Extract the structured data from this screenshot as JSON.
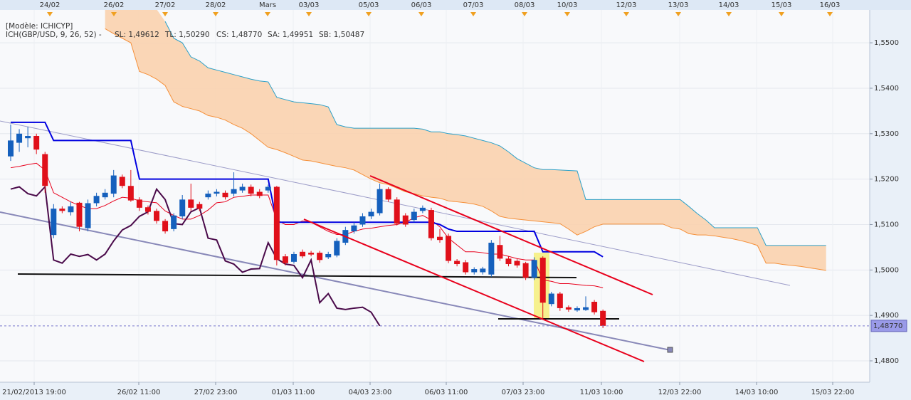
{
  "chart_data": {
    "type": "candlestick",
    "model_label": "[Modèle: ICHICYP]",
    "indicator_label": "ICH(GBP/USD, 9, 26, 52) -",
    "top_labels": [
      "24/02",
      "26/02",
      "27/02",
      "28/02",
      "Mars",
      "03/03",
      "05/03",
      "06/03",
      "07/03",
      "08/03",
      "10/03",
      "12/03",
      "13/03",
      "14/03",
      "15/03",
      "16/03"
    ],
    "bottom_labels": [
      "21/02/2013 19:00",
      "26/02 11:00",
      "27/02 23:00",
      "01/03 11:00",
      "04/03 23:00",
      "06/03 11:00",
      "07/03 23:00",
      "11/03 10:00",
      "12/03 22:00",
      "14/03 10:00",
      "15/03 22:00"
    ],
    "ylim": [
      1.4753,
      1.5566
    ],
    "yticks": [
      {
        "value": 1.48,
        "label": "1,4800"
      },
      {
        "value": 1.49,
        "label": "1,4900"
      },
      {
        "value": 1.5,
        "label": "1,5000"
      },
      {
        "value": 1.51,
        "label": "1,5100"
      },
      {
        "value": 1.52,
        "label": "1,5200"
      },
      {
        "value": 1.53,
        "label": "1,5300"
      },
      {
        "value": 1.54,
        "label": "1,5400"
      },
      {
        "value": 1.55,
        "label": "1,5500"
      }
    ],
    "grid": true,
    "up_color": "#1560bd",
    "down_color": "#e0101a",
    "last_price": {
      "value": 1.4877,
      "label": "1,48770"
    },
    "open": [
      1.525,
      1.528,
      1.529,
      1.5295,
      1.5255,
      1.5077,
      1.5135,
      1.5127,
      1.5148,
      1.5092,
      1.5147,
      1.516,
      1.5168,
      1.5205,
      1.5185,
      1.5155,
      1.5138,
      1.513,
      1.5108,
      1.509,
      1.5118,
      1.5155,
      1.5145,
      1.516,
      1.5168,
      1.517,
      1.5168,
      1.5175,
      1.5183,
      1.5172,
      1.5175,
      1.5183,
      1.503,
      1.5018,
      1.504,
      1.5038,
      1.5038,
      1.5028,
      1.5032,
      1.506,
      1.5085,
      1.51,
      1.5118,
      1.5125,
      1.5178,
      1.5155,
      1.512,
      1.511,
      1.513,
      1.5132,
      1.5073,
      1.5075,
      1.502,
      1.5017,
      1.4995,
      1.4995,
      1.499,
      1.5055,
      1.5025,
      1.502,
      1.5015,
      1.4983,
      1.5027,
      1.4925,
      1.4948,
      1.4918,
      1.4911,
      1.4912,
      1.493,
      1.491,
      null,
      null,
      null,
      null,
      null,
      null,
      null,
      null,
      null,
      null,
      null,
      null,
      null,
      null,
      null,
      null,
      null,
      null,
      null,
      null,
      null,
      null,
      null,
      null,
      null,
      null
    ],
    "high": [
      1.532,
      1.531,
      1.5315,
      1.53,
      1.526,
      1.5145,
      1.514,
      1.515,
      1.515,
      1.5155,
      1.517,
      1.5178,
      1.522,
      1.521,
      1.522,
      1.516,
      1.5142,
      1.5135,
      1.5112,
      1.5125,
      1.5165,
      1.519,
      1.515,
      1.5175,
      1.5178,
      1.5175,
      1.5215,
      1.519,
      1.5188,
      1.5178,
      1.5188,
      1.5185,
      1.5035,
      1.504,
      1.5045,
      1.5042,
      1.5042,
      1.504,
      1.507,
      1.5095,
      1.5105,
      1.5125,
      1.5135,
      1.519,
      1.5182,
      1.516,
      1.5125,
      1.5135,
      1.5142,
      1.5137,
      1.509,
      1.508,
      1.5024,
      1.5022,
      1.5006,
      1.5007,
      1.5066,
      1.5075,
      1.503,
      1.5024,
      1.5018,
      1.5028,
      1.503,
      1.4952,
      1.4952,
      1.4922,
      1.492,
      1.4942,
      1.4934,
      1.4913,
      null,
      null,
      null,
      null,
      null,
      null,
      null,
      null,
      null,
      null,
      null,
      null,
      null,
      null,
      null,
      null,
      null,
      null,
      null,
      null,
      null,
      null,
      null,
      null,
      null,
      null
    ],
    "low": [
      1.524,
      1.526,
      1.527,
      1.5255,
      1.517,
      1.507,
      1.5125,
      1.512,
      1.5085,
      1.5085,
      1.514,
      1.5155,
      1.516,
      1.518,
      1.515,
      1.513,
      1.5122,
      1.5102,
      1.508,
      1.5085,
      1.5112,
      1.513,
      1.513,
      1.5155,
      1.5162,
      1.5155,
      1.5162,
      1.517,
      1.5162,
      1.5158,
      1.517,
      1.501,
      1.501,
      1.5014,
      1.5026,
      1.503,
      1.5016,
      1.5024,
      1.5028,
      1.5055,
      1.508,
      1.5095,
      1.5112,
      1.512,
      1.515,
      1.5098,
      1.5095,
      1.5105,
      1.5125,
      1.5065,
      1.506,
      1.5015,
      1.5008,
      1.499,
      1.499,
      1.499,
      1.4985,
      1.502,
      1.5008,
      1.5005,
      1.4978,
      1.4978,
      1.489,
      1.492,
      1.491,
      1.4908,
      1.4908,
      1.491,
      1.4902,
      1.4872,
      null,
      null,
      null,
      null,
      null,
      null,
      null,
      null,
      null,
      null,
      null,
      null,
      null,
      null,
      null,
      null,
      null,
      null,
      null,
      null,
      null,
      null,
      null,
      null,
      null,
      null
    ],
    "close": [
      1.5285,
      1.53,
      1.5295,
      1.5265,
      1.5185,
      1.5135,
      1.513,
      1.514,
      1.5095,
      1.5147,
      1.5163,
      1.517,
      1.5208,
      1.5185,
      1.5153,
      1.5137,
      1.5128,
      1.5108,
      1.5085,
      1.512,
      1.5155,
      1.5137,
      1.5135,
      1.5168,
      1.5172,
      1.516,
      1.5178,
      1.5183,
      1.5168,
      1.5163,
      1.5183,
      1.5022,
      1.5015,
      1.5035,
      1.503,
      1.5034,
      1.5022,
      1.5035,
      1.5064,
      1.5088,
      1.5098,
      1.5118,
      1.5128,
      1.5178,
      1.5155,
      1.5102,
      1.51,
      1.5128,
      1.5137,
      1.507,
      1.5066,
      1.502,
      1.5013,
      1.4995,
      1.5002,
      1.5003,
      1.506,
      1.5025,
      1.5013,
      1.501,
      1.4983,
      1.5022,
      1.4928,
      1.4948,
      1.4916,
      1.4913,
      1.4916,
      1.4918,
      1.4907,
      1.4877,
      null,
      null,
      null,
      null,
      null,
      null,
      null,
      null,
      null,
      null,
      null,
      null,
      null,
      null,
      null,
      null,
      null,
      null,
      null,
      null,
      null,
      null,
      null,
      null,
      null,
      null
    ],
    "series": [
      {
        "name": "SL: 1,49612",
        "color": "#e8001c",
        "width": 1,
        "values": [
          1.5225,
          1.5228,
          1.5232,
          1.5235,
          1.522,
          1.517,
          1.516,
          1.515,
          1.5142,
          1.5135,
          1.5135,
          1.5142,
          1.5152,
          1.516,
          1.5158,
          1.5152,
          1.515,
          1.5148,
          1.513,
          1.512,
          1.5112,
          1.5112,
          1.512,
          1.5132,
          1.5148,
          1.515,
          1.516,
          1.5162,
          1.5165,
          1.5165,
          1.5165,
          1.511,
          1.51,
          1.51,
          1.5108,
          1.5105,
          1.5095,
          1.5085,
          1.5078,
          1.5078,
          1.5085,
          1.509,
          1.5092,
          1.5095,
          1.5098,
          1.51,
          1.5105,
          1.5115,
          1.512,
          1.511,
          1.5095,
          1.507,
          1.5055,
          1.504,
          1.504,
          1.5038,
          1.5035,
          1.5035,
          1.503,
          1.5025,
          1.5022,
          1.5022,
          1.4978,
          1.4975,
          1.497,
          1.497,
          1.4968,
          1.4966,
          1.4965,
          1.4961,
          null,
          null,
          null,
          null,
          null,
          null,
          null,
          null,
          null,
          null,
          null,
          null,
          null,
          null,
          null,
          null,
          null,
          null,
          null,
          null,
          null,
          null,
          null,
          null,
          null,
          null
        ]
      },
      {
        "name": "TL: 1,50290",
        "color": "#0000e0",
        "width": 2,
        "values": [
          1.5325,
          1.5325,
          1.5325,
          1.5325,
          1.5325,
          1.5285,
          1.5285,
          1.5285,
          1.5285,
          1.5285,
          1.5285,
          1.5285,
          1.5285,
          1.5285,
          1.5285,
          1.52,
          1.52,
          1.52,
          1.52,
          1.52,
          1.52,
          1.52,
          1.52,
          1.52,
          1.52,
          1.52,
          1.52,
          1.52,
          1.52,
          1.52,
          1.52,
          1.5105,
          1.5105,
          1.5105,
          1.5105,
          1.5105,
          1.5105,
          1.5105,
          1.5105,
          1.5105,
          1.5105,
          1.5105,
          1.5105,
          1.5105,
          1.5105,
          1.5105,
          1.5105,
          1.5105,
          1.5105,
          1.5105,
          1.51,
          1.509,
          1.5085,
          1.5085,
          1.5085,
          1.5085,
          1.5085,
          1.5085,
          1.5085,
          1.5085,
          1.5085,
          1.5085,
          1.504,
          1.504,
          1.504,
          1.504,
          1.504,
          1.504,
          1.504,
          1.5029,
          null,
          null,
          null,
          null,
          null,
          null,
          null,
          null,
          null,
          null,
          null,
          null,
          null,
          null,
          null,
          null,
          null,
          null,
          null,
          null,
          null,
          null,
          null,
          null,
          null,
          null
        ]
      },
      {
        "name": "CS: 1,48770",
        "color": "#4a0a4a",
        "width": 2,
        "values": [
          1.5178,
          1.5183,
          1.5168,
          1.5163,
          1.5183,
          1.5022,
          1.5015,
          1.5035,
          1.503,
          1.5034,
          1.5022,
          1.5035,
          1.5064,
          1.5088,
          1.5098,
          1.5118,
          1.5128,
          1.5178,
          1.5155,
          1.5102,
          1.51,
          1.5128,
          1.5137,
          1.507,
          1.5066,
          1.502,
          1.5013,
          1.4995,
          1.5002,
          1.5003,
          1.506,
          1.5025,
          1.5013,
          1.501,
          1.4983,
          1.5022,
          1.4928,
          1.4948,
          1.4916,
          1.4913,
          1.4916,
          1.4918,
          1.4907,
          1.4877,
          null,
          null,
          null,
          null,
          null,
          null,
          null,
          null,
          null,
          null,
          null,
          null,
          null,
          null,
          null,
          null,
          null,
          null,
          null,
          null,
          null,
          null,
          null,
          null,
          null,
          null,
          null,
          null,
          null,
          null,
          null,
          null,
          null,
          null,
          null,
          null,
          null,
          null,
          null,
          null,
          null,
          null,
          null,
          null,
          null,
          null,
          null,
          null,
          null,
          null,
          null,
          null
        ]
      },
      {
        "name": "SA: 1,49951",
        "color": "#f5903a",
        "width": 1,
        "values": [
          null,
          null,
          null,
          null,
          null,
          null,
          null,
          null,
          null,
          null,
          null,
          1.5531,
          1.552,
          1.551,
          1.55,
          1.5437,
          1.543,
          1.542,
          1.5406,
          1.537,
          1.536,
          1.5355,
          1.535,
          1.534,
          1.5336,
          1.533,
          1.532,
          1.5312,
          1.53,
          1.5285,
          1.527,
          1.5265,
          1.5258,
          1.525,
          1.5242,
          1.524,
          1.5236,
          1.5232,
          1.5228,
          1.5225,
          1.522,
          1.521,
          1.52,
          1.5192,
          1.5188,
          1.518,
          1.5172,
          1.5168,
          1.5163,
          1.516,
          1.5158,
          1.5152,
          1.515,
          1.5148,
          1.5145,
          1.514,
          1.513,
          1.5118,
          1.5114,
          1.5112,
          1.511,
          1.5108,
          1.5106,
          1.5104,
          1.5102,
          1.509,
          1.5077,
          1.5085,
          1.5095,
          1.5101,
          1.5101,
          1.5101,
          1.5101,
          1.5101,
          1.5101,
          1.5101,
          1.5101,
          1.5093,
          1.509,
          1.508,
          1.5077,
          1.5077,
          1.5075,
          1.5072,
          1.5069,
          1.5065,
          1.506,
          1.5054,
          1.5015,
          1.5015,
          1.5012,
          1.501,
          1.5008,
          1.5005,
          1.5002,
          1.4999
        ]
      },
      {
        "name": "SB: 1,50487",
        "color": "#2aa0c8",
        "width": 1,
        "values": [
          null,
          null,
          null,
          null,
          null,
          null,
          null,
          null,
          null,
          null,
          null,
          null,
          null,
          null,
          null,
          null,
          null,
          null,
          1.5547,
          1.551,
          1.55,
          1.5469,
          1.546,
          1.5445,
          1.544,
          1.5435,
          1.543,
          1.5425,
          1.542,
          1.5416,
          1.5414,
          1.538,
          1.5375,
          1.537,
          1.5368,
          1.5366,
          1.5364,
          1.5359,
          1.532,
          1.5315,
          1.5312,
          1.5312,
          1.5312,
          1.5312,
          1.5312,
          1.5312,
          1.5312,
          1.5312,
          1.531,
          1.5304,
          1.5304,
          1.53,
          1.5298,
          1.5295,
          1.529,
          1.5285,
          1.528,
          1.5273,
          1.526,
          1.5245,
          1.5235,
          1.5225,
          1.5221,
          1.5221,
          1.522,
          1.5219,
          1.5218,
          1.5155,
          1.5155,
          1.5155,
          1.5155,
          1.5155,
          1.5155,
          1.5155,
          1.5155,
          1.5155,
          1.5155,
          1.5155,
          1.5155,
          1.514,
          1.5124,
          1.511,
          1.5093,
          1.5093,
          1.5093,
          1.5093,
          1.5093,
          1.5093,
          1.5054,
          1.5054,
          1.5054,
          1.5054,
          1.5054,
          1.5054,
          1.5054,
          1.5054
        ]
      }
    ]
  }
}
